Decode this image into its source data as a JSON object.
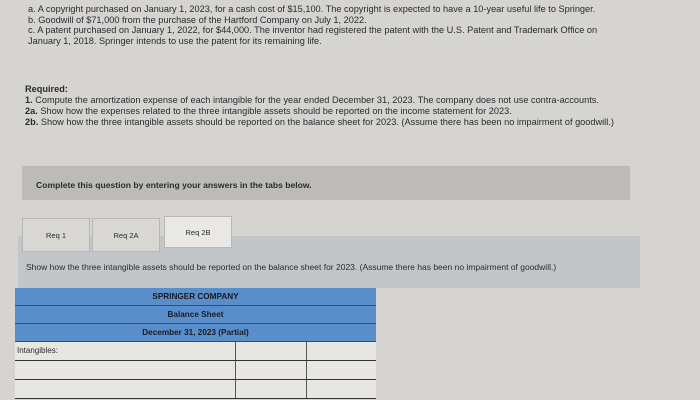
{
  "intro": {
    "a": "a. A copyright purchased on January 1, 2023, for a cash cost of $15,100. The copyright is expected to have a 10-year useful life to Springer.",
    "b": "b. Goodwill of $71,000 from the purchase of the Hartford Company on July 1, 2022.",
    "c": "c. A patent purchased on January 1, 2022, for $44,000. The inventor had registered the patent with the U.S. Patent and Trademark Office on January 1, 2018. Springer intends to use the patent for its remaining life."
  },
  "required": {
    "heading": "Required:",
    "r1_num": "1.",
    "r1": " Compute the amortization expense of each intangible for the year ended December 31, 2023. The company does not use contra-accounts.",
    "r2a_num": "2a.",
    "r2a": " Show how the expenses related to the three intangible assets should be reported on the income statement for 2023.",
    "r2b_num": "2b.",
    "r2b": " Show how the three intangible assets should be reported on the balance sheet for 2023. (Assume there has been no impairment of goodwill.)"
  },
  "notice": "Complete this question by entering your answers in the tabs below.",
  "tabs": [
    "Req 1",
    "Req 2A",
    "Req 2B"
  ],
  "active_tab": "Req 2B",
  "instruction": "Show how the three intangible assets should be reported on the balance sheet for 2023. (Assume there has been no impairment of goodwill.)",
  "table": {
    "company": "SPRINGER COMPANY",
    "statement": "Balance Sheet",
    "date": "December 31, 2023 (Partial)",
    "row_label": "Intangibles:"
  },
  "colors": {
    "header_blue": "#5a8ecb",
    "panel": "#c2c6c8"
  }
}
